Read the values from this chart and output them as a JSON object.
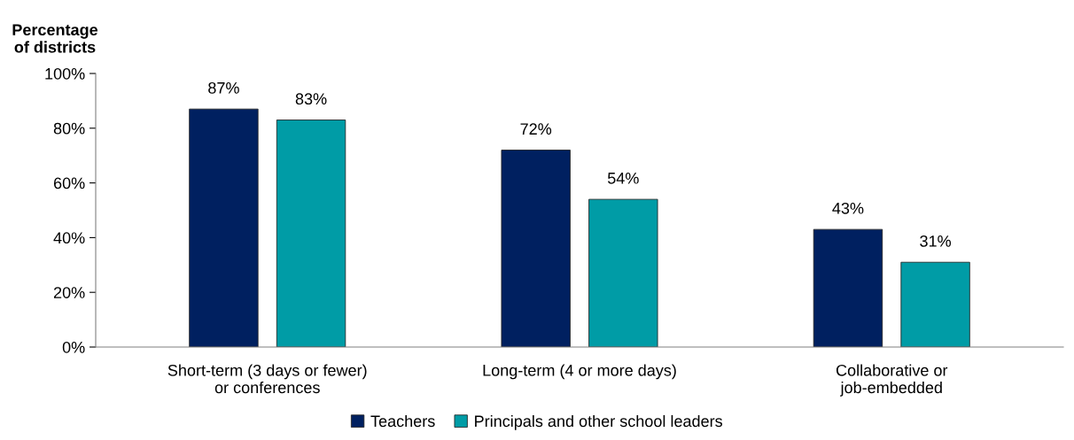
{
  "chart_data": {
    "type": "bar",
    "ylabel": "Percentage\nof districts",
    "categories": [
      "Short-term (3 days or fewer)\nor conferences",
      "Long-term (4 or more days)",
      "Collaborative or\njob-embedded"
    ],
    "series": [
      {
        "name": "Teachers",
        "color": "#002060",
        "values": [
          87,
          72,
          43
        ],
        "value_labels": [
          "87%",
          "72%",
          "43%"
        ]
      },
      {
        "name": "Principals and other school leaders",
        "color": "#009ca6",
        "values": [
          83,
          54,
          31
        ],
        "value_labels": [
          "83%",
          "54%",
          "31%"
        ]
      }
    ],
    "ylim": [
      0,
      100
    ],
    "yticks": [
      {
        "value": 0,
        "label": "0%"
      },
      {
        "value": 20,
        "label": "20%"
      },
      {
        "value": 40,
        "label": "40%"
      },
      {
        "value": 60,
        "label": "60%"
      },
      {
        "value": 80,
        "label": "80%"
      },
      {
        "value": 100,
        "label": "100%"
      }
    ],
    "grid": false,
    "legend": "bottom"
  }
}
